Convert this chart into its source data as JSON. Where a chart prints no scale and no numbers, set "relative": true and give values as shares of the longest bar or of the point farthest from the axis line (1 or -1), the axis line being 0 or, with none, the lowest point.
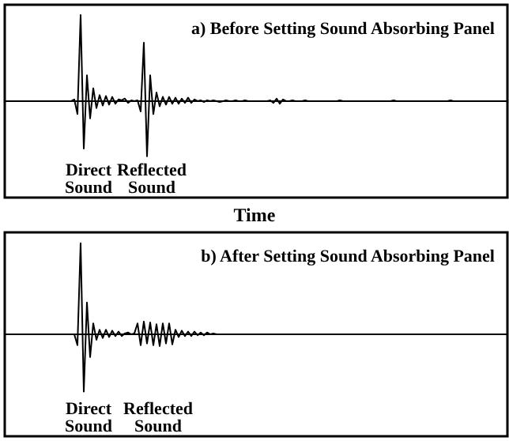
{
  "chart_data": [
    {
      "type": "line",
      "title": "a) Before Setting Sound Absorbing Panel",
      "xlabel": "Time",
      "relative": true,
      "marker": "none",
      "annotations": [
        "Direct Sound",
        "Reflected Sound"
      ],
      "categories": [
        null,
        null,
        null,
        null,
        null,
        null,
        null,
        null,
        null,
        null,
        null,
        null,
        null,
        null,
        null,
        null,
        null,
        null,
        null,
        null,
        null,
        null,
        null,
        null,
        null,
        null,
        null,
        null,
        null,
        null,
        null,
        null,
        null,
        null,
        null,
        null,
        null,
        null,
        null,
        null,
        null,
        null,
        null,
        null,
        null,
        null,
        null,
        null,
        null,
        null,
        null,
        null,
        null,
        null,
        null,
        null,
        null,
        null,
        null,
        null,
        null,
        null,
        null,
        null,
        null,
        null,
        null,
        null,
        null,
        null,
        null,
        null,
        null,
        null,
        null,
        null,
        null,
        null,
        null,
        null,
        null,
        null,
        null,
        null,
        null,
        null,
        null,
        null,
        null,
        null,
        null,
        null,
        null,
        null,
        null,
        null,
        null,
        null,
        null,
        null,
        null,
        null,
        null,
        null,
        null,
        null,
        null,
        null,
        null,
        null,
        null,
        null,
        null,
        null,
        null,
        null,
        null,
        null,
        null,
        null,
        null,
        null,
        null,
        null,
        null,
        null,
        null,
        null,
        null,
        null,
        null,
        null,
        null,
        null,
        null,
        null,
        null,
        null,
        null,
        null,
        null,
        null,
        null,
        null,
        null,
        null,
        null,
        null,
        null,
        null,
        null,
        null,
        null,
        null,
        null,
        null,
        null,
        null,
        null,
        null
      ],
      "series": [
        {
          "color": "#000000",
          "values": [
            0,
            0,
            0,
            0,
            0,
            0,
            0,
            0,
            0,
            0,
            0,
            0,
            0,
            0,
            0,
            0,
            0,
            0,
            0,
            0,
            0,
            0,
            0.02,
            -0.15,
            1,
            -0.55,
            0.3,
            -0.2,
            0.15,
            -0.08,
            0.07,
            -0.05,
            0.06,
            -0.04,
            0.05,
            -0.03,
            0.02,
            0.01,
            0.03,
            -0.02,
            0.01,
            0,
            0.01,
            -0.12,
            0.68,
            -0.64,
            0.3,
            -0.15,
            0.1,
            -0.06,
            0.05,
            -0.04,
            0.05,
            -0.03,
            0.04,
            -0.03,
            0.03,
            -0.02,
            0.04,
            -0.02,
            0.02,
            0,
            0.01,
            -0.01,
            0.01,
            0,
            0.01,
            0,
            -0.01,
            0,
            0.01,
            0,
            0,
            0.01,
            0,
            0,
            0.01,
            0,
            0,
            0,
            0,
            0,
            0,
            0,
            0.01,
            -0.02,
            0.03,
            -0.03,
            0.02,
            0,
            0,
            0.01,
            0,
            0,
            0,
            0.01,
            0,
            0,
            0,
            0,
            0,
            0,
            0,
            0,
            0,
            0,
            0.01,
            0,
            0,
            0,
            0,
            0,
            0,
            0,
            0,
            0,
            0,
            0,
            0,
            0,
            0,
            0,
            0,
            0.01,
            0,
            0,
            0,
            0,
            0,
            0,
            0,
            0,
            0,
            0,
            0,
            0,
            0,
            0,
            0,
            0,
            0,
            0.01,
            0,
            0,
            0,
            0,
            0,
            0,
            0,
            0,
            0,
            0,
            0,
            0,
            0,
            0,
            0,
            0,
            0,
            0
          ]
        }
      ]
    },
    {
      "type": "line",
      "title": "b) After Setting Sound Absorbing Panel",
      "relative": true,
      "marker": "none",
      "annotations": [
        "Direct Sound",
        "Reflected Sound"
      ],
      "categories": [
        null,
        null,
        null,
        null,
        null,
        null,
        null,
        null,
        null,
        null,
        null,
        null,
        null,
        null,
        null,
        null,
        null,
        null,
        null,
        null,
        null,
        null,
        null,
        null,
        null,
        null,
        null,
        null,
        null,
        null,
        null,
        null,
        null,
        null,
        null,
        null,
        null,
        null,
        null,
        null,
        null,
        null,
        null,
        null,
        null,
        null,
        null,
        null,
        null,
        null,
        null,
        null,
        null,
        null,
        null,
        null,
        null,
        null,
        null,
        null,
        null,
        null,
        null,
        null,
        null,
        null,
        null,
        null,
        null,
        null,
        null,
        null,
        null,
        null,
        null,
        null,
        null,
        null,
        null,
        null,
        null,
        null,
        null,
        null,
        null,
        null,
        null,
        null,
        null,
        null,
        null,
        null,
        null,
        null,
        null,
        null,
        null,
        null,
        null,
        null,
        null,
        null,
        null,
        null,
        null,
        null,
        null,
        null,
        null,
        null,
        null,
        null,
        null,
        null,
        null,
        null,
        null,
        null,
        null,
        null,
        null,
        null,
        null,
        null,
        null,
        null,
        null,
        null,
        null,
        null,
        null,
        null,
        null,
        null,
        null,
        null,
        null,
        null,
        null,
        null,
        null,
        null,
        null,
        null,
        null,
        null,
        null,
        null,
        null,
        null,
        null,
        null,
        null,
        null,
        null,
        null,
        null,
        null,
        null,
        null
      ],
      "series": [
        {
          "color": "#000000",
          "values": [
            0,
            0,
            0,
            0,
            0,
            0,
            0,
            0,
            0,
            0,
            0,
            0,
            0,
            0,
            0,
            0,
            0,
            0,
            0,
            0,
            0,
            0,
            0,
            -0.12,
            1,
            -0.63,
            0.35,
            -0.25,
            0.12,
            -0.06,
            0.05,
            -0.04,
            0.05,
            -0.03,
            0.04,
            -0.02,
            0.03,
            -0.02,
            0.01,
            0.02,
            0,
            0.01,
            0.12,
            -0.12,
            0.14,
            -0.1,
            0.13,
            -0.12,
            0.11,
            -0.13,
            0.12,
            -0.1,
            0.12,
            -0.11,
            0.05,
            -0.03,
            0.04,
            -0.02,
            0.03,
            -0.02,
            0.03,
            -0.01,
            0.02,
            -0.01,
            0.02,
            0,
            0.01,
            0,
            0,
            0,
            0,
            0,
            0,
            0,
            0,
            0,
            0,
            0,
            0,
            0,
            0,
            0,
            0,
            0,
            0,
            0,
            0,
            0,
            0,
            0,
            0,
            0,
            0,
            0,
            0,
            0,
            0,
            0,
            0,
            0,
            0,
            0,
            0,
            0,
            0,
            0,
            0,
            0,
            0,
            0,
            0,
            0,
            0,
            0,
            0,
            0,
            0,
            0,
            0,
            0,
            0,
            0,
            0,
            0,
            0,
            0,
            0,
            0,
            0,
            0,
            0,
            0,
            0,
            0,
            0,
            0,
            0,
            0,
            0,
            0,
            0,
            0,
            0,
            0,
            0,
            0,
            0,
            0,
            0,
            0,
            0,
            0,
            0,
            0,
            0,
            0,
            0,
            0,
            0,
            0
          ]
        }
      ]
    }
  ]
}
